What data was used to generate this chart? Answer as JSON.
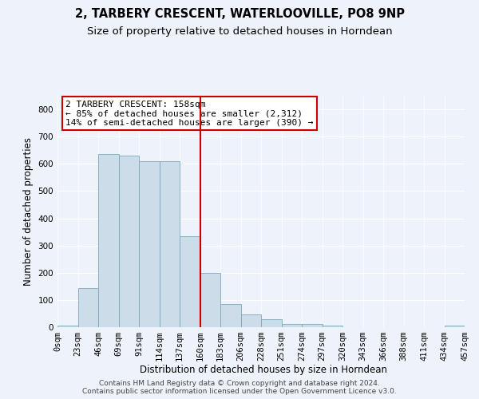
{
  "title": "2, TARBERY CRESCENT, WATERLOOVILLE, PO8 9NP",
  "subtitle": "Size of property relative to detached houses in Horndean",
  "xlabel": "Distribution of detached houses by size in Horndean",
  "ylabel": "Number of detached properties",
  "bar_color": "#ccdce8",
  "bar_edge_color": "#7aaabb",
  "background_color": "#eef2fa",
  "grid_color": "#ffffff",
  "vline_color": "#cc0000",
  "vline_bin": 7,
  "bar_heights": [
    5,
    143,
    637,
    630,
    609,
    609,
    333,
    200,
    85,
    48,
    29,
    12,
    12,
    5,
    0,
    0,
    0,
    0,
    0,
    5
  ],
  "bin_labels": [
    "0sqm",
    "23sqm",
    "46sqm",
    "69sqm",
    "91sqm",
    "114sqm",
    "137sqm",
    "160sqm",
    "183sqm",
    "206sqm",
    "228sqm",
    "251sqm",
    "274sqm",
    "297sqm",
    "320sqm",
    "343sqm",
    "366sqm",
    "388sqm",
    "411sqm",
    "434sqm",
    "457sqm"
  ],
  "ylim": [
    0,
    850
  ],
  "yticks": [
    0,
    100,
    200,
    300,
    400,
    500,
    600,
    700,
    800
  ],
  "annotation_text": "2 TARBERY CRESCENT: 158sqm\n← 85% of detached houses are smaller (2,312)\n14% of semi-detached houses are larger (390) →",
  "annotation_box_color": "#ffffff",
  "annotation_box_edge": "#cc0000",
  "footer_text": "Contains HM Land Registry data © Crown copyright and database right 2024.\nContains public sector information licensed under the Open Government Licence v3.0.",
  "title_fontsize": 10.5,
  "subtitle_fontsize": 9.5,
  "axis_label_fontsize": 8.5,
  "tick_fontsize": 7.5,
  "annotation_fontsize": 8,
  "footer_fontsize": 6.5
}
